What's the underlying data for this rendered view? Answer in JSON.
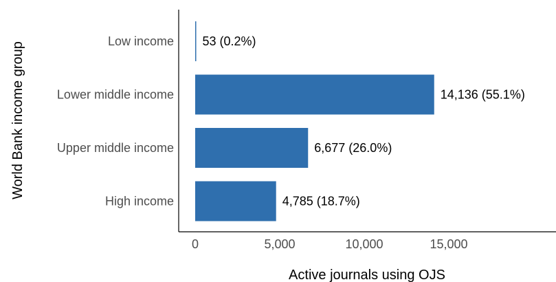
{
  "chart_data": {
    "type": "bar",
    "orientation": "horizontal",
    "categories": [
      "Low income",
      "Lower middle income",
      "Upper middle income",
      "High income"
    ],
    "values": [
      53,
      14136,
      6677,
      4785
    ],
    "data_labels": [
      "53 (0.2%)",
      "14,136 (55.1%)",
      "6,677 (26.0%)",
      "4,785 (18.7%)"
    ],
    "xlabel": "Active journals using OJS",
    "ylabel": "World Bank income group",
    "xlim": [
      0,
      19500
    ],
    "xticks": [
      0,
      5000,
      10000,
      15000
    ],
    "xtick_labels": [
      "0",
      "5,000",
      "10,000",
      "15,000"
    ],
    "grid": false,
    "bar_color": "#2f6fae"
  }
}
